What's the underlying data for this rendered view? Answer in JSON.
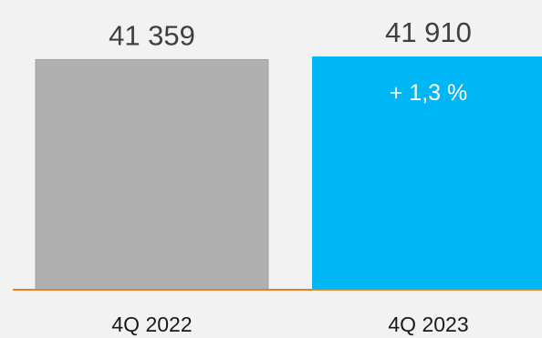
{
  "chart_data": {
    "type": "bar",
    "categories": [
      "4Q 2022",
      "4Q 2023"
    ],
    "values": [
      41359,
      41910
    ],
    "value_labels": [
      "41 359",
      "41 910"
    ],
    "annotation": "+ 1,3 %",
    "title": "",
    "xlabel": "",
    "ylabel": "",
    "ylim": [
      0,
      41910
    ],
    "grid": false,
    "legend": "none"
  },
  "colors": {
    "background": "#f2f2f2",
    "bar_previous": "#b0b0b0",
    "bar_current": "#00b6f5",
    "baseline": "#e8802a",
    "value_text": "#404040",
    "annotation_text": "#ffffff",
    "category_text": "#1a1a1a"
  }
}
